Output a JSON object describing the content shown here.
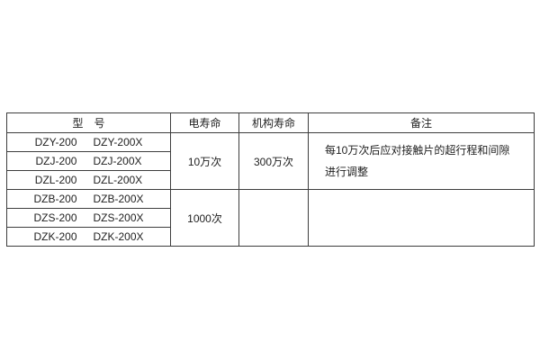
{
  "table": {
    "headers": {
      "model": "型　号",
      "electrical_life": "电寿命",
      "mechanical_life": "机构寿命",
      "remarks": "备注"
    },
    "rows": [
      {
        "model_a": "DZY-200",
        "model_b": "DZY-200X"
      },
      {
        "model_a": "DZJ-200",
        "model_b": "DZJ-200X"
      },
      {
        "model_a": "DZL-200",
        "model_b": "DZL-200X"
      },
      {
        "model_a": "DZB-200",
        "model_b": "DZB-200X"
      },
      {
        "model_a": "DZS-200",
        "model_b": "DZS-200X"
      },
      {
        "model_a": "DZK-200",
        "model_b": "DZK-200X"
      }
    ],
    "groups": [
      {
        "electrical_life": "10万次",
        "mechanical_life": "300万次",
        "remarks_line1": "每10万次后应对接触片的超行程和间隙",
        "remarks_line2": "进行调整"
      },
      {
        "electrical_life": "1000次",
        "mechanical_life": "",
        "remarks_line1": "",
        "remarks_line2": ""
      }
    ]
  },
  "colors": {
    "background": "#ffffff",
    "border": "#3d3d3d",
    "text": "#1f1f1f"
  }
}
